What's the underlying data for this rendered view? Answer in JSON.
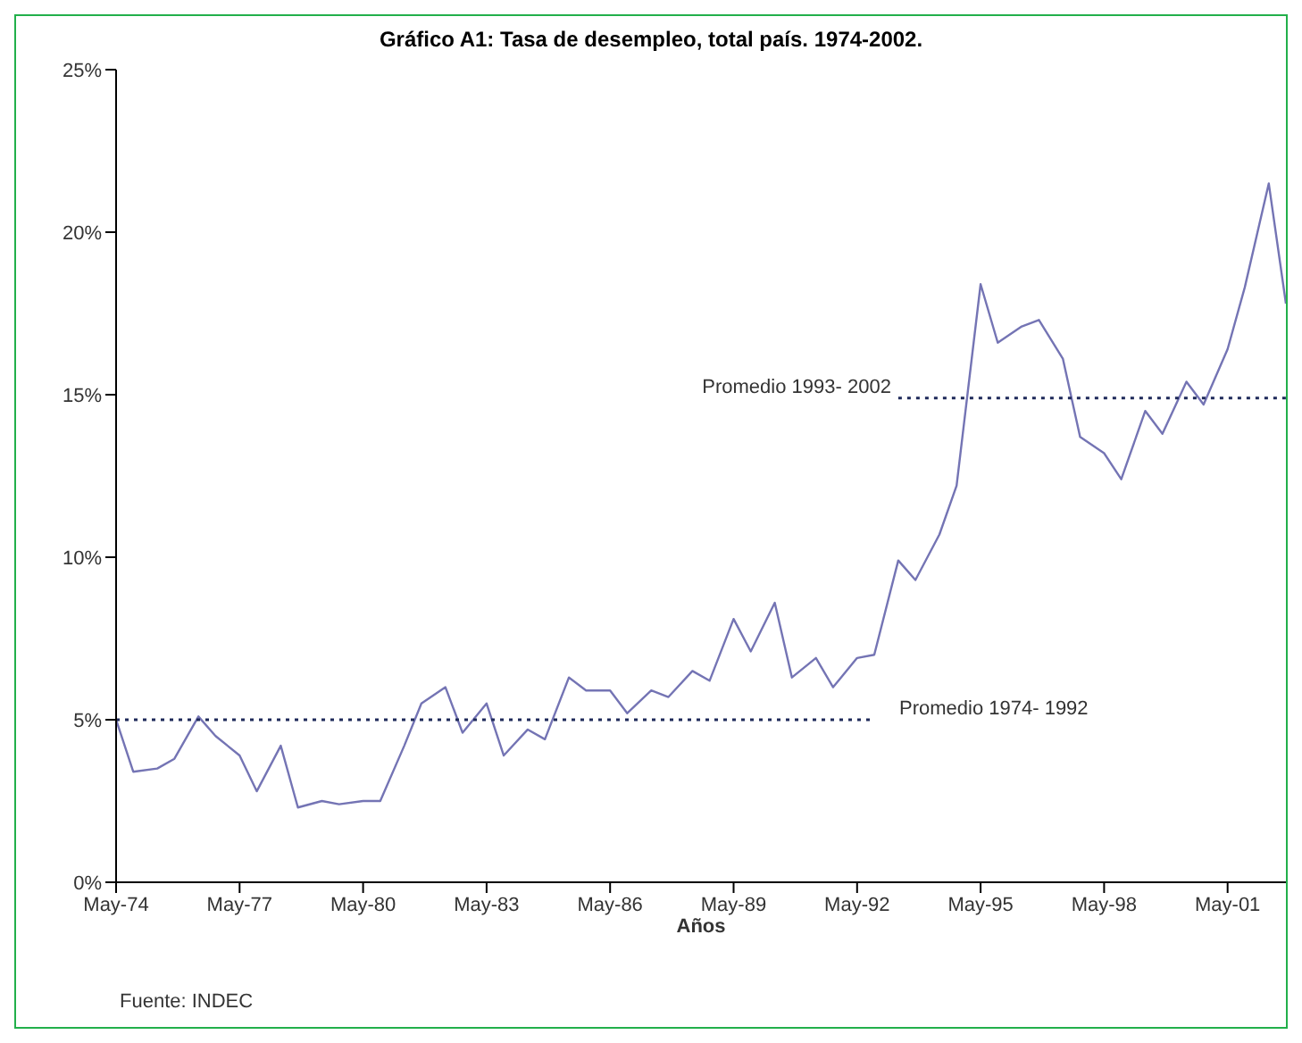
{
  "chart_data": {
    "type": "line",
    "title": "Gráfico A1: Tasa de desempleo, total país. 1974-2002.",
    "xlabel": "Años",
    "annotations": [
      "Fuente: INDEC"
    ],
    "x": [
      "1974-05",
      "1974-10",
      "1975-05",
      "1975-10",
      "1976-05",
      "1976-10",
      "1977-05",
      "1977-10",
      "1978-05",
      "1978-10",
      "1979-05",
      "1979-10",
      "1980-05",
      "1980-10",
      "1981-05",
      "1981-10",
      "1982-05",
      "1982-10",
      "1983-05",
      "1983-10",
      "1984-05",
      "1984-10",
      "1985-05",
      "1985-10",
      "1986-05",
      "1986-10",
      "1987-05",
      "1987-10",
      "1988-05",
      "1988-10",
      "1989-05",
      "1989-10",
      "1990-05",
      "1990-10",
      "1991-05",
      "1991-10",
      "1992-05",
      "1992-10",
      "1993-05",
      "1993-10",
      "1994-05",
      "1994-10",
      "1995-05",
      "1995-10",
      "1996-05",
      "1996-10",
      "1997-05",
      "1997-10",
      "1998-05",
      "1998-10",
      "1999-05",
      "1999-10",
      "2000-05",
      "2000-10",
      "2001-05",
      "2001-10",
      "2002-05",
      "2002-10"
    ],
    "series": [
      {
        "color": "#7474b4",
        "values": [
          5.0,
          3.4,
          3.5,
          3.8,
          5.1,
          4.5,
          3.9,
          2.8,
          4.2,
          2.3,
          2.5,
          2.4,
          2.5,
          2.5,
          4.2,
          5.5,
          6.0,
          4.6,
          5.5,
          3.9,
          4.7,
          4.4,
          6.3,
          5.9,
          5.9,
          5.2,
          5.9,
          5.7,
          6.5,
          6.2,
          8.1,
          7.1,
          8.6,
          6.3,
          6.9,
          6.0,
          6.9,
          7.0,
          9.9,
          9.3,
          10.7,
          12.2,
          18.4,
          16.6,
          17.1,
          17.3,
          16.1,
          13.7,
          13.2,
          12.4,
          14.5,
          13.8,
          15.4,
          14.7,
          16.4,
          18.3,
          21.5,
          17.8
        ]
      },
      {
        "name": "Promedio 1974- 1992",
        "type": "line",
        "color": "#1f2a5a",
        "line_style": "dotted",
        "x": [
          "1974-05",
          "1992-10"
        ],
        "values": [
          5.0,
          5.0
        ]
      },
      {
        "name": "Promedio 1993- 2002",
        "type": "line",
        "color": "#1f2a5a",
        "line_style": "dotted",
        "x": [
          "1993-05",
          "2002-10"
        ],
        "values": [
          14.9,
          14.9
        ]
      }
    ],
    "xlim": [
      "1974-05",
      "2002-10"
    ],
    "xticks": [
      {
        "value": "1974-05",
        "label": "May-74"
      },
      {
        "value": "1977-05",
        "label": "May-77"
      },
      {
        "value": "1980-05",
        "label": "May-80"
      },
      {
        "value": "1983-05",
        "label": "May-83"
      },
      {
        "value": "1986-05",
        "label": "May-86"
      },
      {
        "value": "1989-05",
        "label": "May-89"
      },
      {
        "value": "1992-05",
        "label": "May-92"
      },
      {
        "value": "1995-05",
        "label": "May-95"
      },
      {
        "value": "1998-05",
        "label": "May-98"
      },
      {
        "value": "2001-05",
        "label": "May-01"
      }
    ],
    "ylim": [
      0,
      25
    ],
    "yticks": [
      {
        "value": 0,
        "label": "0%"
      },
      {
        "value": 5,
        "label": "5%"
      },
      {
        "value": 10,
        "label": "10%"
      },
      {
        "value": 15,
        "label": "15%"
      },
      {
        "value": 20,
        "label": "20%"
      },
      {
        "value": 25,
        "label": "25%"
      }
    ],
    "grid": false,
    "legend": false,
    "marker": "none",
    "line_style": "solid"
  }
}
